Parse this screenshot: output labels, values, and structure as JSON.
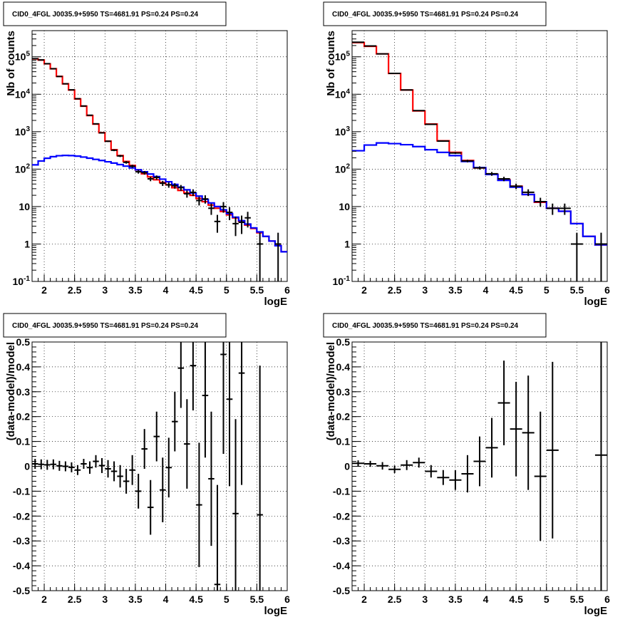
{
  "chart_data": [
    {
      "type": "line",
      "title": "CID0_4FGL J0035.9+5950 TS=4681.91 PS=0.24 PS=0.24",
      "xlabel": "logE",
      "ylabel": "Nb of counts",
      "xlim": [
        1.8,
        6.0
      ],
      "ylim": [
        0.1,
        500000
      ],
      "yscale": "log",
      "grid": true,
      "x_ticks": [
        "2",
        "2.5",
        "3",
        "3.5",
        "4",
        "4.5",
        "5",
        "5.5",
        "6"
      ],
      "y_ticks": [
        "10^-1",
        "1",
        "10",
        "10^2",
        "10^3",
        "10^4",
        "10^5"
      ],
      "bin_edges": [
        1.8,
        1.9,
        2.0,
        2.1,
        2.2,
        2.3,
        2.4,
        2.5,
        2.6,
        2.7,
        2.8,
        2.9,
        3.0,
        3.1,
        3.2,
        3.3,
        3.4,
        3.5,
        3.6,
        3.7,
        3.8,
        3.9,
        4.0,
        4.1,
        4.2,
        4.3,
        4.4,
        4.5,
        4.6,
        4.7,
        4.8,
        4.9,
        5.0,
        5.1,
        5.2,
        5.3,
        5.4,
        5.5,
        5.6,
        5.7,
        5.8,
        5.9,
        6.0
      ],
      "series": [
        {
          "color": "#ff0000",
          "style": "histogram",
          "values": [
            88000,
            82000,
            65000,
            48000,
            30000,
            19000,
            13000,
            7500,
            4800,
            2700,
            1600,
            940,
            560,
            330,
            230,
            160,
            125,
            95,
            75,
            62,
            52,
            44,
            38,
            32,
            27,
            23,
            20,
            16.5,
            13.5,
            11,
            9,
            7.4,
            6,
            5,
            4,
            3.2,
            2.6,
            2,
            1.6,
            1.2,
            0.9,
            0.62
          ]
        },
        {
          "color": "#0000ff",
          "style": "histogram",
          "values": [
            130,
            165,
            195,
            215,
            228,
            232,
            230,
            222,
            210,
            196,
            182,
            170,
            157,
            145,
            132,
            120,
            108,
            96,
            85,
            74,
            63,
            54,
            46,
            39,
            33,
            28,
            23,
            19,
            15.5,
            12.5,
            10,
            8.2,
            6.5,
            5.2,
            4.2,
            3.4,
            2.7,
            2.1,
            1.6,
            1.2,
            0.9,
            0.62
          ]
        },
        {
          "color": "#000000",
          "style": "points",
          "x": [
            1.85,
            1.95,
            2.05,
            2.15,
            2.25,
            2.35,
            2.45,
            2.55,
            2.65,
            2.75,
            2.85,
            2.95,
            3.05,
            3.15,
            3.25,
            3.35,
            3.45,
            3.55,
            3.65,
            3.75,
            3.85,
            3.95,
            4.05,
            4.15,
            4.25,
            4.35,
            4.45,
            4.55,
            4.65,
            4.75,
            4.85,
            4.95,
            5.05,
            5.15,
            5.25,
            5.35,
            5.55,
            5.85
          ],
          "y": [
            89000,
            82500,
            65500,
            48000,
            29800,
            19000,
            13100,
            7600,
            4850,
            2750,
            1620,
            930,
            555,
            320,
            225,
            152,
            120,
            85,
            80,
            55,
            60,
            42,
            38,
            36,
            32,
            22,
            24,
            14.5,
            16,
            9,
            4,
            10,
            7,
            3.5,
            3.8,
            5,
            1,
            1
          ]
        }
      ]
    },
    {
      "type": "line",
      "title": "CID0_4FGL J0035.9+5950 TS=4681.91 PS=0.24 PS=0.24",
      "xlabel": "logE",
      "ylabel": "Nb of counts",
      "xlim": [
        1.8,
        6.0
      ],
      "ylim": [
        0.1,
        500000
      ],
      "yscale": "log",
      "grid": true,
      "x_ticks": [
        "2",
        "2.5",
        "3",
        "3.5",
        "4",
        "4.5",
        "5",
        "5.5",
        "6"
      ],
      "y_ticks": [
        "10^-1",
        "1",
        "10",
        "10^2",
        "10^3",
        "10^4",
        "10^5"
      ],
      "bin_edges": [
        1.8,
        2.0,
        2.2,
        2.4,
        2.6,
        2.8,
        3.0,
        3.2,
        3.4,
        3.6,
        3.8,
        4.0,
        4.2,
        4.4,
        4.6,
        4.8,
        5.0,
        5.2,
        5.4,
        5.6,
        5.8,
        6.0
      ],
      "series": [
        {
          "color": "#ff0000",
          "style": "histogram",
          "values": [
            240000,
            190000,
            120000,
            36000,
            13000,
            3600,
            1600,
            570,
            280,
            170,
            108,
            73,
            52,
            35,
            21,
            13,
            9,
            7.5,
            3.5,
            1.6,
            0.95
          ]
        },
        {
          "color": "#0000ff",
          "style": "histogram",
          "values": [
            310,
            440,
            500,
            480,
            450,
            400,
            330,
            280,
            230,
            160,
            110,
            72,
            50,
            33,
            21,
            13.5,
            9,
            7.5,
            3.5,
            1.6,
            0.95
          ]
        },
        {
          "color": "#000000",
          "style": "points",
          "x": [
            1.9,
            2.1,
            2.3,
            2.5,
            2.7,
            2.9,
            3.1,
            3.3,
            3.5,
            3.7,
            3.9,
            4.1,
            4.3,
            4.5,
            4.7,
            4.9,
            5.1,
            5.3,
            5.5,
            5.9
          ],
          "y": [
            245000,
            195000,
            120000,
            36000,
            13000,
            3650,
            1570,
            560,
            270,
            165,
            108,
            75,
            55,
            35,
            24,
            13.5,
            9,
            9,
            1,
            1
          ]
        }
      ]
    },
    {
      "type": "scatter",
      "title": "CID0_4FGL J0035.9+5950 TS=4681.91 PS=0.24 PS=0.24",
      "xlabel": "logE",
      "ylabel": "(data-model)/model",
      "xlim": [
        1.8,
        6.0
      ],
      "ylim": [
        -0.5,
        0.5
      ],
      "grid": true,
      "x_ticks": [
        "2",
        "2.5",
        "3",
        "3.5",
        "4",
        "4.5",
        "5",
        "5.5",
        "6"
      ],
      "y_ticks": [
        "-0.5",
        "-0.4",
        "-0.3",
        "-0.2",
        "-0.1",
        "0",
        "0.1",
        "0.2",
        "0.3",
        "0.4",
        "0.5"
      ],
      "points": [
        {
          "x": 1.85,
          "y": 0.01,
          "err": 0.02
        },
        {
          "x": 1.95,
          "y": 0.008,
          "err": 0.02
        },
        {
          "x": 2.05,
          "y": 0.006,
          "err": 0.02
        },
        {
          "x": 2.15,
          "y": 0.008,
          "err": 0.02
        },
        {
          "x": 2.25,
          "y": 0.002,
          "err": 0.02
        },
        {
          "x": 2.35,
          "y": 0.0,
          "err": 0.02
        },
        {
          "x": 2.45,
          "y": -0.004,
          "err": 0.02
        },
        {
          "x": 2.55,
          "y": -0.015,
          "err": 0.02
        },
        {
          "x": 2.65,
          "y": 0.01,
          "err": 0.02
        },
        {
          "x": 2.75,
          "y": -0.005,
          "err": 0.025
        },
        {
          "x": 2.85,
          "y": 0.02,
          "err": 0.025
        },
        {
          "x": 2.95,
          "y": 0.003,
          "err": 0.03
        },
        {
          "x": 3.05,
          "y": -0.01,
          "err": 0.035
        },
        {
          "x": 3.15,
          "y": -0.02,
          "err": 0.04
        },
        {
          "x": 3.25,
          "y": -0.04,
          "err": 0.045
        },
        {
          "x": 3.35,
          "y": -0.06,
          "err": 0.05
        },
        {
          "x": 3.45,
          "y": -0.015,
          "err": 0.06
        },
        {
          "x": 3.55,
          "y": -0.1,
          "err": 0.07
        },
        {
          "x": 3.65,
          "y": 0.07,
          "err": 0.08
        },
        {
          "x": 3.75,
          "y": -0.165,
          "err": 0.11
        },
        {
          "x": 3.85,
          "y": 0.12,
          "err": 0.1
        },
        {
          "x": 3.95,
          "y": -0.095,
          "err": 0.13
        },
        {
          "x": 4.05,
          "y": -0.005,
          "err": 0.12
        },
        {
          "x": 4.15,
          "y": 0.18,
          "err": 0.12
        },
        {
          "x": 4.25,
          "y": 0.395,
          "err": 0.16
        },
        {
          "x": 4.35,
          "y": 0.09,
          "err": 0.18
        },
        {
          "x": 4.45,
          "y": 0.405,
          "err": 0.18
        },
        {
          "x": 4.55,
          "y": -0.155,
          "err": 0.25
        },
        {
          "x": 4.65,
          "y": 0.285,
          "err": 0.25
        },
        {
          "x": 4.75,
          "y": -0.05,
          "err": 0.27
        },
        {
          "x": 4.85,
          "y": -0.475,
          "err": 0.4
        },
        {
          "x": 4.95,
          "y": 0.45,
          "err": 0.4
        },
        {
          "x": 5.05,
          "y": 0.27,
          "err": 0.35
        },
        {
          "x": 5.15,
          "y": -0.19,
          "err": 0.38
        },
        {
          "x": 5.25,
          "y": 0.375,
          "err": 0.45
        },
        {
          "x": 5.55,
          "y": -0.195,
          "err": 0.6
        }
      ]
    },
    {
      "type": "scatter",
      "title": "CID0_4FGL J0035.9+5950 TS=4681.91 PS=0.24 PS=0.24",
      "xlabel": "logE",
      "ylabel": "(data-model)/model",
      "xlim": [
        1.8,
        6.0
      ],
      "ylim": [
        -0.5,
        0.5
      ],
      "grid": true,
      "x_ticks": [
        "2",
        "2.5",
        "3",
        "3.5",
        "4",
        "4.5",
        "5",
        "5.5",
        "6"
      ],
      "y_ticks": [
        "-0.5",
        "-0.4",
        "-0.3",
        "-0.2",
        "-0.1",
        "0",
        "0.1",
        "0.2",
        "0.3",
        "0.4",
        "0.5"
      ],
      "points": [
        {
          "x": 1.9,
          "y": 0.012,
          "err": 0.012
        },
        {
          "x": 2.1,
          "y": 0.01,
          "err": 0.012
        },
        {
          "x": 2.3,
          "y": 0.002,
          "err": 0.015
        },
        {
          "x": 2.5,
          "y": -0.012,
          "err": 0.015
        },
        {
          "x": 2.7,
          "y": 0.005,
          "err": 0.02
        },
        {
          "x": 2.9,
          "y": 0.015,
          "err": 0.02
        },
        {
          "x": 3.1,
          "y": -0.02,
          "err": 0.025
        },
        {
          "x": 3.3,
          "y": -0.045,
          "err": 0.03
        },
        {
          "x": 3.5,
          "y": -0.055,
          "err": 0.04
        },
        {
          "x": 3.7,
          "y": -0.03,
          "err": 0.075
        },
        {
          "x": 3.9,
          "y": 0.02,
          "err": 0.1
        },
        {
          "x": 4.1,
          "y": 0.075,
          "err": 0.12
        },
        {
          "x": 4.3,
          "y": 0.255,
          "err": 0.17
        },
        {
          "x": 4.5,
          "y": 0.15,
          "err": 0.19
        },
        {
          "x": 4.7,
          "y": 0.135,
          "err": 0.23
        },
        {
          "x": 4.9,
          "y": -0.04,
          "err": 0.26
        },
        {
          "x": 5.1,
          "y": 0.065,
          "err": 0.355
        },
        {
          "x": 5.9,
          "y": 0.045,
          "err": 0.55
        }
      ]
    }
  ]
}
